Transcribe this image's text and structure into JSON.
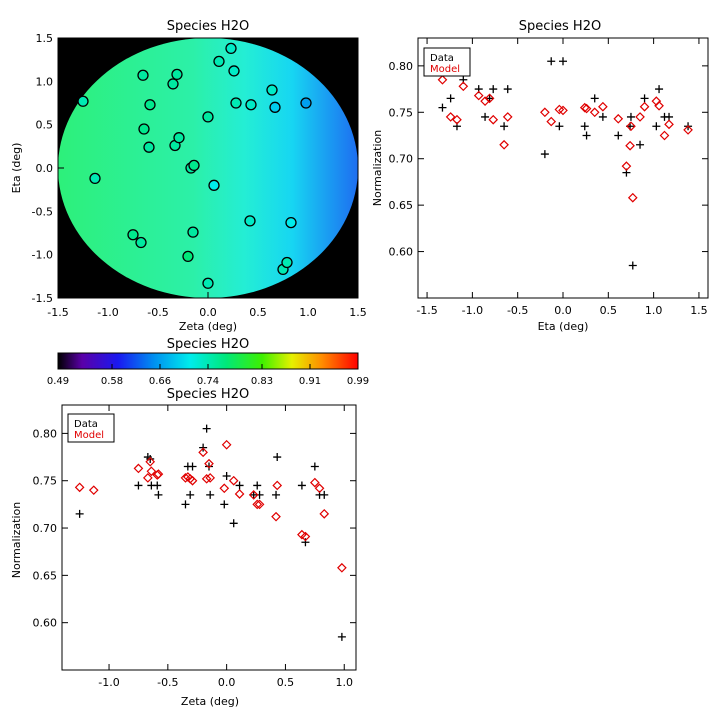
{
  "chart_data": [
    {
      "type": "heatmap",
      "title": "Species H2O",
      "xlabel": "Zeta (deg)",
      "ylabel": "Eta (deg)",
      "xlim": [
        -1.5,
        1.5
      ],
      "ylim": [
        -1.5,
        1.5
      ],
      "xticks": [
        "-1.5",
        "-1.0",
        "-0.5",
        "0.0",
        "0.5",
        "1.0",
        "1.5"
      ],
      "yticks": [
        "-1.5",
        "-1.0",
        "-0.5",
        "0.0",
        "0.5",
        "1.0",
        "1.5"
      ],
      "background_color": "#000000",
      "colormap": "rainbow",
      "colorbar": {
        "title": "Species H2O",
        "ticks": [
          "0.49",
          "0.58",
          "0.66",
          "0.74",
          "0.83",
          "0.91",
          "0.99"
        ],
        "range": [
          0.49,
          0.99
        ]
      },
      "points": [
        {
          "x": -1.25,
          "y": 0.77,
          "v": 0.74
        },
        {
          "x": -1.13,
          "y": -0.12,
          "v": 0.74
        },
        {
          "x": -0.75,
          "y": -0.77,
          "v": 0.76
        },
        {
          "x": -0.67,
          "y": -0.86,
          "v": 0.75
        },
        {
          "x": -0.65,
          "y": 1.07,
          "v": 0.75
        },
        {
          "x": -0.64,
          "y": 0.45,
          "v": 0.76
        },
        {
          "x": -0.59,
          "y": 0.24,
          "v": 0.75
        },
        {
          "x": -0.58,
          "y": 0.73,
          "v": 0.76
        },
        {
          "x": -0.35,
          "y": 0.97,
          "v": 0.75
        },
        {
          "x": -0.33,
          "y": 0.26,
          "v": 0.75
        },
        {
          "x": -0.31,
          "y": 1.08,
          "v": 0.75
        },
        {
          "x": -0.29,
          "y": 0.35,
          "v": 0.75
        },
        {
          "x": -0.2,
          "y": -1.02,
          "v": 0.77
        },
        {
          "x": -0.17,
          "y": 0.0,
          "v": 0.75
        },
        {
          "x": -0.15,
          "y": -0.74,
          "v": 0.75
        },
        {
          "x": -0.14,
          "y": 0.03,
          "v": 0.76
        },
        {
          "x": -0.0,
          "y": 0.59,
          "v": 0.75
        },
        {
          "x": 0.0,
          "y": -1.33,
          "v": 0.74
        },
        {
          "x": 0.06,
          "y": -0.2,
          "v": 0.71
        },
        {
          "x": 0.11,
          "y": 1.23,
          "v": 0.74
        },
        {
          "x": 0.23,
          "y": 1.38,
          "v": 0.73
        },
        {
          "x": 0.26,
          "y": 1.12,
          "v": 0.73
        },
        {
          "x": 0.28,
          "y": 0.75,
          "v": 0.74
        },
        {
          "x": 0.43,
          "y": 0.73,
          "v": 0.73
        },
        {
          "x": 0.42,
          "y": -0.61,
          "v": 0.73
        },
        {
          "x": 0.64,
          "y": 0.9,
          "v": 0.73
        },
        {
          "x": 0.67,
          "y": 0.7,
          "v": 0.69
        },
        {
          "x": 0.75,
          "y": -1.17,
          "v": 0.74
        },
        {
          "x": 0.79,
          "y": -1.09,
          "v": 0.74
        },
        {
          "x": 0.83,
          "y": -0.63,
          "v": 0.71
        },
        {
          "x": 0.98,
          "y": 0.75,
          "v": 0.66
        }
      ]
    },
    {
      "type": "scatter",
      "title": "Species H2O",
      "xlabel": "Eta (deg)",
      "ylabel": "Normalization",
      "xlim": [
        -1.6,
        1.6
      ],
      "ylim": [
        0.55,
        0.83
      ],
      "xticks": [
        "-1.5",
        "-1.0",
        "-0.5",
        "0.0",
        "0.5",
        "1.0",
        "1.5"
      ],
      "yticks": [
        "0.60",
        "0.65",
        "0.70",
        "0.75",
        "0.80"
      ],
      "legend": {
        "position": "top-left",
        "entries": [
          "Data",
          "Model"
        ]
      },
      "series": [
        {
          "name": "Data",
          "marker": "plus",
          "color": "#000000",
          "x": [
            -1.33,
            -1.24,
            -1.17,
            -1.1,
            -0.93,
            -0.86,
            -0.81,
            -0.77,
            -0.65,
            -0.61,
            -0.2,
            -0.13,
            -0.04,
            0.0,
            0.24,
            0.26,
            0.35,
            0.44,
            0.61,
            0.7,
            0.74,
            0.75,
            0.77,
            0.85,
            0.9,
            1.03,
            1.06,
            1.12,
            1.17,
            1.38
          ],
          "y": [
            0.755,
            0.765,
            0.735,
            0.785,
            0.775,
            0.745,
            0.765,
            0.775,
            0.735,
            0.775,
            0.705,
            0.805,
            0.735,
            0.805,
            0.735,
            0.725,
            0.765,
            0.745,
            0.725,
            0.685,
            0.735,
            0.745,
            0.585,
            0.715,
            0.765,
            0.735,
            0.775,
            0.745,
            0.745,
            0.735
          ]
        },
        {
          "name": "Model",
          "marker": "diamond",
          "color": "#e00000",
          "x": [
            -1.33,
            -1.24,
            -1.17,
            -1.1,
            -0.93,
            -0.86,
            -0.81,
            -0.77,
            -0.65,
            -0.61,
            -0.2,
            -0.13,
            -0.04,
            0.0,
            0.24,
            0.26,
            0.35,
            0.44,
            0.61,
            0.7,
            0.74,
            0.75,
            0.77,
            0.85,
            0.9,
            1.03,
            1.06,
            1.12,
            1.17,
            1.38
          ],
          "y": [
            0.785,
            0.745,
            0.742,
            0.778,
            0.768,
            0.762,
            0.765,
            0.742,
            0.715,
            0.745,
            0.75,
            0.74,
            0.753,
            0.752,
            0.755,
            0.754,
            0.75,
            0.756,
            0.743,
            0.692,
            0.714,
            0.735,
            0.658,
            0.745,
            0.756,
            0.762,
            0.757,
            0.725,
            0.737,
            0.731
          ]
        }
      ]
    },
    {
      "type": "scatter",
      "title": "Species H2O",
      "xlabel": "Zeta (deg)",
      "ylabel": "Normalization",
      "xlim": [
        -1.4,
        1.1
      ],
      "ylim": [
        0.55,
        0.83
      ],
      "xticks": [
        "-1.0",
        "-0.5",
        "0.0",
        "0.5",
        "1.0"
      ],
      "yticks": [
        "0.60",
        "0.65",
        "0.70",
        "0.75",
        "0.80"
      ],
      "legend": {
        "position": "top-left",
        "entries": [
          "Data",
          "Model"
        ]
      },
      "series": [
        {
          "name": "Data",
          "marker": "plus",
          "color": "#000000",
          "x": [
            -1.25,
            -0.75,
            -0.67,
            -0.65,
            -0.64,
            -0.59,
            -0.58,
            -0.35,
            -0.33,
            -0.31,
            -0.29,
            -0.2,
            -0.17,
            -0.15,
            -0.14,
            -0.02,
            0.0,
            0.06,
            0.11,
            0.23,
            0.26,
            0.28,
            0.43,
            0.42,
            0.64,
            0.67,
            0.75,
            0.79,
            0.83,
            0.98
          ],
          "y": [
            0.715,
            0.745,
            0.775,
            0.773,
            0.745,
            0.745,
            0.735,
            0.725,
            0.765,
            0.735,
            0.765,
            0.785,
            0.805,
            0.765,
            0.735,
            0.725,
            0.755,
            0.705,
            0.745,
            0.735,
            0.745,
            0.735,
            0.775,
            0.735,
            0.745,
            0.685,
            0.765,
            0.735,
            0.735,
            0.585
          ]
        },
        {
          "name": "Model",
          "marker": "diamond",
          "color": "#e00000",
          "x": [
            -1.25,
            -1.13,
            -0.75,
            -0.67,
            -0.65,
            -0.64,
            -0.59,
            -0.58,
            -0.35,
            -0.33,
            -0.31,
            -0.29,
            -0.2,
            -0.17,
            -0.15,
            -0.14,
            -0.02,
            0.0,
            0.06,
            0.11,
            0.23,
            0.26,
            0.28,
            0.43,
            0.42,
            0.64,
            0.67,
            0.75,
            0.79,
            0.83,
            0.98
          ],
          "y": [
            0.743,
            0.74,
            0.763,
            0.753,
            0.77,
            0.76,
            0.756,
            0.757,
            0.753,
            0.754,
            0.752,
            0.75,
            0.78,
            0.752,
            0.768,
            0.753,
            0.742,
            0.788,
            0.75,
            0.736,
            0.735,
            0.725,
            0.725,
            0.745,
            0.712,
            0.693,
            0.691,
            0.748,
            0.742,
            0.715,
            0.658
          ]
        }
      ]
    }
  ]
}
